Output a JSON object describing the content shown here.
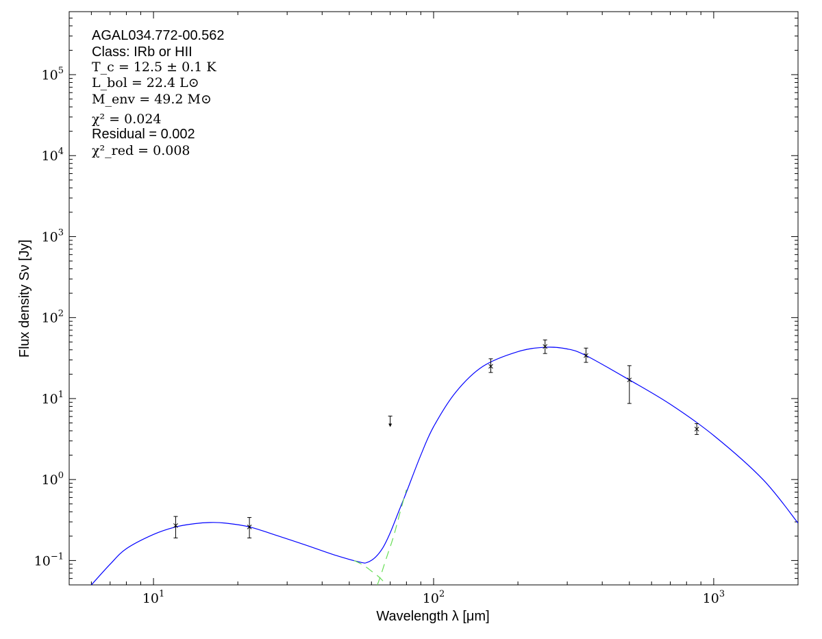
{
  "chart_data": {
    "type": "scatter",
    "title": "",
    "xlabel": "Wavelength λ [μm]",
    "ylabel": "Flux density Sν [Jy]",
    "xscale": "log",
    "yscale": "log",
    "xlim": [
      5,
      2000
    ],
    "ylim": [
      0.05,
      600000
    ],
    "grid": false,
    "annotations": {
      "source": "AGAL034.772-00.562",
      "class": "Class: IRb or HII",
      "tc": "T_c = 12.5 ± 0.1 K",
      "lbol": "L_bol = 22.4 L⊙",
      "menv": "M_env = 49.2 M⊙",
      "chi2": "χ² = 0.024",
      "residual": "Residual = 0.002",
      "chi2red": "χ²_red = 0.008"
    },
    "x_ticks": [
      {
        "value": 10,
        "base": "10",
        "exp": "1"
      },
      {
        "value": 100,
        "base": "10",
        "exp": "2"
      },
      {
        "value": 1000,
        "base": "10",
        "exp": "3"
      }
    ],
    "y_ticks": [
      {
        "value": 0.1,
        "base": "10",
        "exp": "−1"
      },
      {
        "value": 1,
        "base": "10",
        "exp": "0"
      },
      {
        "value": 10,
        "base": "10",
        "exp": "1"
      },
      {
        "value": 100,
        "base": "10",
        "exp": "2"
      },
      {
        "value": 1000,
        "base": "10",
        "exp": "3"
      },
      {
        "value": 10000,
        "base": "10",
        "exp": "4"
      },
      {
        "value": 100000,
        "base": "10",
        "exp": "5"
      }
    ],
    "points": [
      {
        "x": 12,
        "y": 0.27,
        "ylow": 0.19,
        "yhigh": 0.35
      },
      {
        "x": 22,
        "y": 0.26,
        "ylow": 0.19,
        "yhigh": 0.34
      },
      {
        "x": 160,
        "y": 25,
        "ylow": 21,
        "yhigh": 31
      },
      {
        "x": 250,
        "y": 44,
        "ylow": 36,
        "yhigh": 53
      },
      {
        "x": 350,
        "y": 34,
        "ylow": 28,
        "yhigh": 42
      },
      {
        "x": 500,
        "y": 17,
        "ylow": 8.7,
        "yhigh": 25.5
      },
      {
        "x": 870,
        "y": 4.2,
        "ylow": 3.6,
        "yhigh": 4.9
      }
    ],
    "upper_limits": [
      {
        "x": 70,
        "y": 5.2
      }
    ],
    "series": [
      {
        "style": "blue solid",
        "x": [
          6,
          7,
          8,
          10,
          12,
          14,
          16,
          18,
          22,
          28,
          35,
          45,
          55,
          58,
          62,
          66,
          70,
          75,
          80,
          90,
          100,
          120,
          150,
          200,
          250,
          300,
          350,
          500,
          700,
          1000,
          1500,
          2000
        ],
        "y": [
          0.05,
          0.09,
          0.14,
          0.21,
          0.26,
          0.285,
          0.295,
          0.29,
          0.26,
          0.2,
          0.155,
          0.115,
          0.095,
          0.095,
          0.11,
          0.145,
          0.22,
          0.4,
          0.7,
          2.0,
          4.5,
          12,
          25,
          38,
          43,
          41,
          34,
          17,
          8.5,
          3.5,
          1.0,
          0.29
        ]
      },
      {
        "style": "green dashed",
        "x": [
          52,
          56,
          60,
          64,
          68
        ],
        "y": [
          0.1,
          0.088,
          0.074,
          0.062,
          0.05
        ]
      },
      {
        "style": "green dashed",
        "x": [
          63,
          65,
          68,
          72,
          76,
          80
        ],
        "y": [
          0.05,
          0.068,
          0.11,
          0.2,
          0.4,
          0.75
        ]
      }
    ]
  }
}
